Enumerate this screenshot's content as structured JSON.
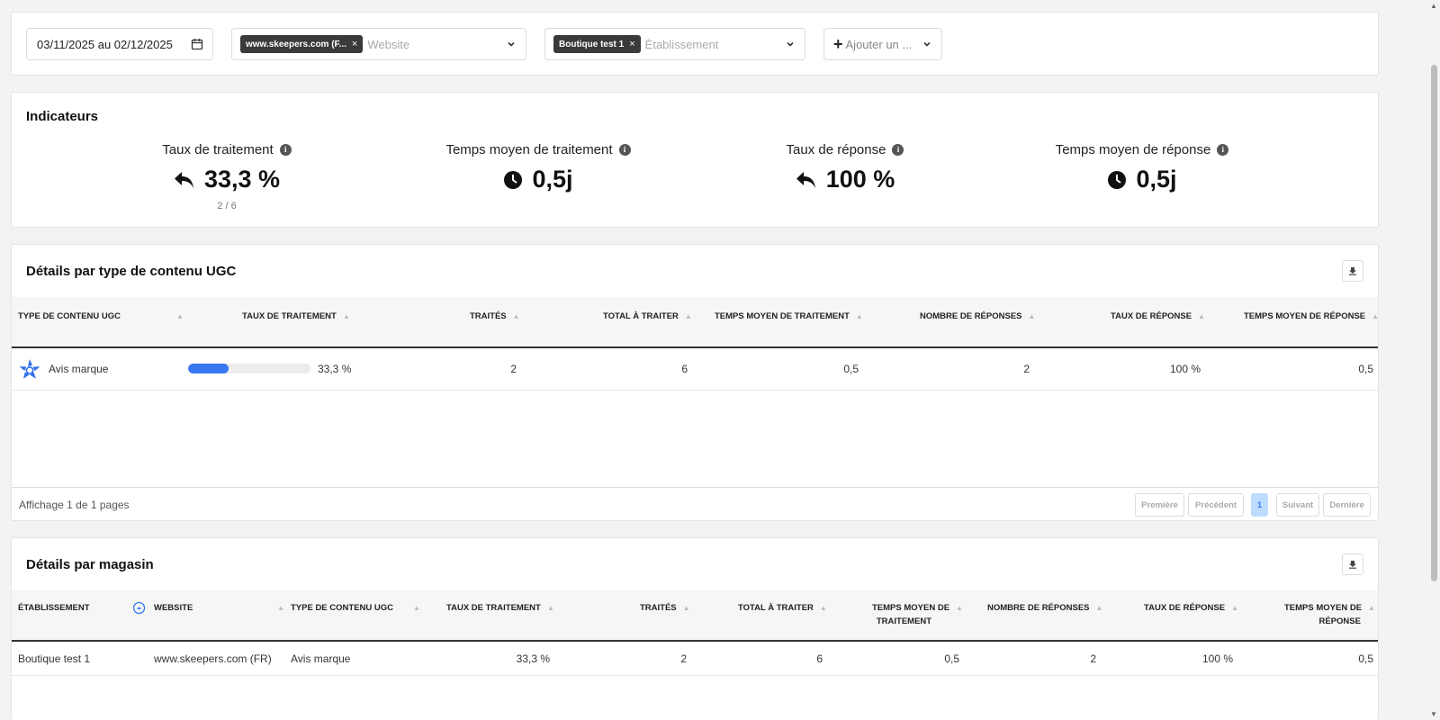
{
  "filters": {
    "date_range": "03/11/2025 au 02/12/2025",
    "website_chip": "www.skeepers.com (F...",
    "website_placeholder": "Website",
    "store_chip": "Boutique test 1",
    "store_placeholder": "Établissement",
    "add_filter": "Ajouter un ..."
  },
  "indicators": {
    "title": "Indicateurs",
    "kpis": [
      {
        "label": "Taux de traitement",
        "value": "33,3 %",
        "sub": "2 / 6",
        "icon": "reply-icon"
      },
      {
        "label": "Temps moyen de traitement",
        "value": "0,5j",
        "icon": "clock-icon"
      },
      {
        "label": "Taux de réponse",
        "value": "100 %",
        "icon": "reply-icon"
      },
      {
        "label": "Temps moyen de réponse",
        "value": "0,5j",
        "icon": "clock-icon"
      }
    ]
  },
  "ugc_table": {
    "title": "Détails par type de contenu UGC",
    "headers": [
      "Type de contenu UGC",
      "Taux de traitement",
      "Traités",
      "Total à traiter",
      "Temps moyen de traitement",
      "Nombre de réponses",
      "Taux de réponse",
      "Temps moyen de réponse"
    ],
    "rows": [
      {
        "type": "Avis marque",
        "progress": 0.333,
        "rate": "33,3 %",
        "treated": "2",
        "total": "6",
        "avg_time": "0,5",
        "responses": "2",
        "resp_rate": "100 %",
        "resp_time": "0,5"
      }
    ],
    "footer": "Affichage 1 de 1 pages",
    "pager": [
      "Première",
      "Précédent",
      "1",
      "Suivant",
      "Dernière"
    ]
  },
  "store_table": {
    "title": "Détails par magasin",
    "headers": [
      "Établissement",
      "Website",
      "Type de contenu UGC",
      "Taux de traitement",
      "Traités",
      "Total à traiter",
      "Temps moyen de",
      "traitement",
      "Nombre de réponses",
      "Taux de réponse",
      "Temps moyen de",
      "réponse"
    ],
    "rows": [
      {
        "store": "Boutique test 1",
        "website": "www.skeepers.com (FR)",
        "type": "Avis marque",
        "rate": "33,3 %",
        "treated": "2",
        "total": "6",
        "avg_time": "0,5",
        "responses": "2",
        "resp_rate": "100 %",
        "resp_time": "0,5"
      }
    ]
  },
  "colors": {
    "accent": "#3a78f2",
    "chip_bg": "#3a3a3a"
  }
}
